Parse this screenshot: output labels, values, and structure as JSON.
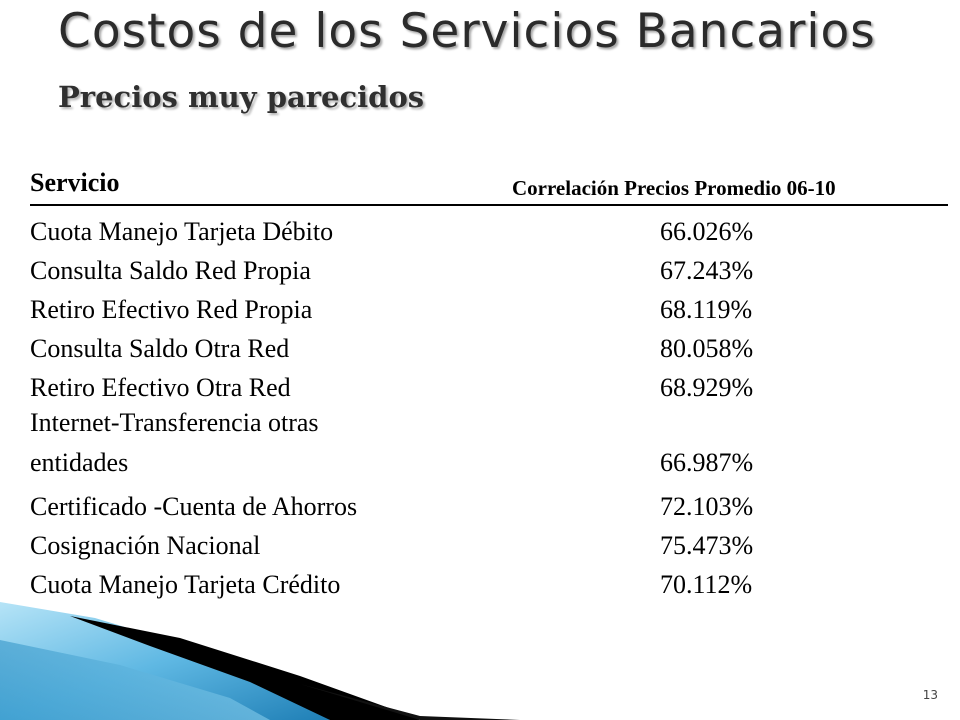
{
  "slide": {
    "title": "Costos de los Servicios Bancarios",
    "subtitle": "Precios muy parecidos",
    "page_number": "13"
  },
  "table": {
    "header": {
      "service": "Servicio",
      "correlation": "Correlación Precios Promedio 06-10"
    },
    "rows": [
      {
        "service": "Cuota Manejo Tarjeta Débito",
        "value": "66.026%"
      },
      {
        "service": "Consulta Saldo Red Propia",
        "value": "67.243%"
      },
      {
        "service": "Retiro Efectivo Red Propia",
        "value": "68.119%"
      },
      {
        "service": "Consulta Saldo Otra Red",
        "value": "80.058%"
      },
      {
        "service": "Retiro Efectivo Otra Red",
        "value": "68.929%"
      },
      {
        "service": "Internet-Transferencia otras entidades",
        "value": "66.987%"
      },
      {
        "service": "Certificado -Cuenta de Ahorros",
        "value": "72.103%"
      },
      {
        "service": "Cosignación Nacional",
        "value": "75.473%"
      },
      {
        "service": "Cuota Manejo Tarjeta Crédito",
        "value": "70.112%"
      }
    ]
  },
  "colors": {
    "title_text": "#2b2b2b",
    "accent_blue_light": "#8fd3f0",
    "accent_blue_dark": "#2a8fc4",
    "accent_black": "#000000"
  }
}
